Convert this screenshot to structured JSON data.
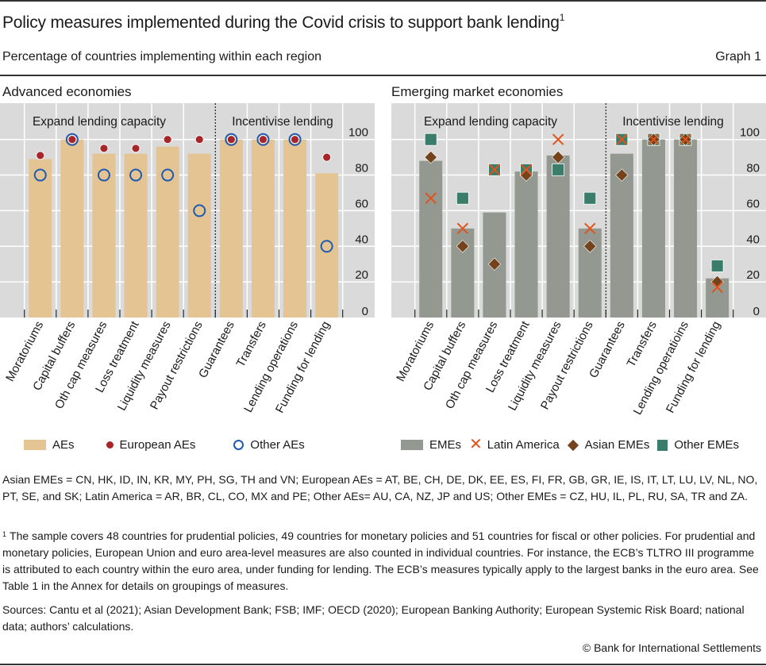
{
  "header": {
    "title": "Policy measures implemented during the Covid crisis to support bank lending",
    "title_footnote_mark": "1",
    "subtitle": "Percentage of countries implementing within each region",
    "graph_number": "Graph 1"
  },
  "colors": {
    "plot_bg": "#dadada",
    "grid": "#ffffff",
    "ae_bar": "#e5c493",
    "european_ae": "#a8262a",
    "other_ae": "#1f5bb0",
    "eme_bar": "#939890",
    "latin_america": "#e2531c",
    "asian_eme": "#74431c",
    "other_eme": "#3a7d6a"
  },
  "chart_data": [
    {
      "type": "bar",
      "title": "Advanced economies",
      "group_labels": [
        "Expand lending capacity",
        "Incentivise lending"
      ],
      "group_split_after_index": 5,
      "categories": [
        "Moratoriums",
        "Capital buffers",
        "Oth cap measures",
        "Loss treatment",
        "Liquidity measures",
        "Payout restrictions",
        "Guarantees",
        "Transfers",
        "Lending operations",
        "Funding for lending"
      ],
      "series": [
        {
          "name": "AEs",
          "kind": "bar",
          "values": [
            89,
            100,
            92,
            92,
            96,
            92,
            100,
            100,
            100,
            81
          ]
        },
        {
          "name": "European AEs",
          "kind": "dot",
          "values": [
            91,
            100,
            95,
            95,
            100,
            100,
            100,
            100,
            100,
            90
          ]
        },
        {
          "name": "Other AEs",
          "kind": "ring",
          "values": [
            80,
            100,
            80,
            80,
            80,
            60,
            100,
            100,
            100,
            40
          ]
        }
      ],
      "xlabel": "",
      "ylabel": "",
      "ylim": [
        0,
        100
      ],
      "yticks": [
        0,
        20,
        40,
        60,
        80,
        100
      ],
      "y_axis_side": "right",
      "grid": true,
      "legend": "bottom"
    },
    {
      "type": "bar",
      "title": "Emerging market economies",
      "group_labels": [
        "Expand lending capacity",
        "Incentivise lending"
      ],
      "group_split_after_index": 5,
      "categories": [
        "Moratoriums",
        "Capital buffers",
        "Oth cap measures",
        "Loss treatment",
        "Liquidity measures",
        "Payout restrictions",
        "Guarantees",
        "Transfers",
        "Lending operatioins",
        "Funding for lending"
      ],
      "series": [
        {
          "name": "EMEs",
          "kind": "bar",
          "values": [
            88,
            50,
            59,
            82,
            91,
            50,
            92,
            100,
            100,
            22
          ]
        },
        {
          "name": "Latin America",
          "kind": "x",
          "values": [
            67,
            50,
            83,
            83,
            100,
            50,
            100,
            100,
            100,
            17
          ]
        },
        {
          "name": "Asian EMEs",
          "kind": "diamond",
          "values": [
            90,
            40,
            30,
            80,
            90,
            40,
            80,
            100,
            100,
            20
          ]
        },
        {
          "name": "Other EMEs",
          "kind": "square",
          "values": [
            100,
            67,
            83,
            83,
            83,
            67,
            100,
            100,
            100,
            29
          ]
        }
      ],
      "xlabel": "",
      "ylabel": "",
      "ylim": [
        0,
        100
      ],
      "yticks": [
        0,
        20,
        40,
        60,
        80,
        100
      ],
      "y_axis_side": "right",
      "grid": true,
      "legend": "bottom"
    }
  ],
  "notes": {
    "definitions": "Asian EMEs = CN, HK, ID, IN, KR, MY, PH, SG, TH and VN; European AEs = AT, BE, CH, DE, DK, EE, ES, FI, FR, GB, GR, IE, IS, IT, LT, LU, LV, NL, NO, PT, SE, and SK; Latin America = AR, BR, CL, CO, MX and PE; Other AEs= AU, CA, NZ, JP and US; Other EMEs = CZ, HU, IL, PL, RU, SA, TR and ZA.",
    "footnote_mark": "1",
    "footnote": "The sample covers 48 countries for prudential policies, 49 countries for monetary policies and 51 countries for fiscal or other policies. For prudential and monetary policies, European Union and euro area-level measures are also counted in individual countries. For instance, the ECB’s TLTRO III programme is attributed to each country within the euro area, under funding for lending. The ECB’s measures typically apply to the largest banks in the euro area. See Table 1 in the Annex for details on groupings of measures.",
    "sources": "Sources: Cantu et al (2021); Asian Development Bank; FSB; IMF; OECD (2020); European Banking Authority; European Systemic Risk Board; national data; authors’ calculations.",
    "copyright": "© Bank for International Settlements"
  }
}
